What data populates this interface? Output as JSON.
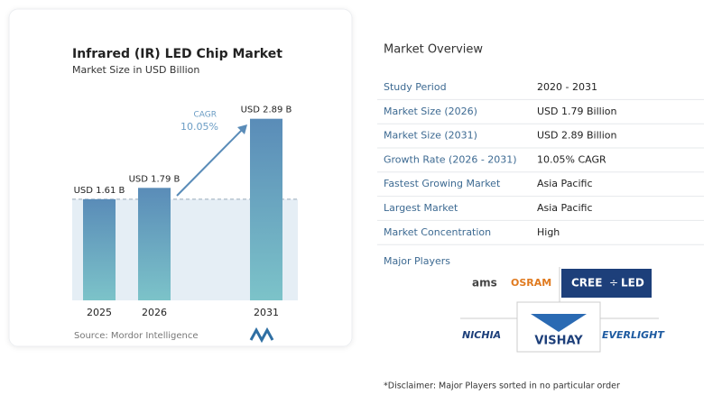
{
  "chart_data": {
    "type": "bar",
    "title": "Infrared (IR) LED Chip Market",
    "subtitle": "Market Size in USD Billion",
    "categories": [
      "2025",
      "2026",
      "2031"
    ],
    "values": [
      1.61,
      1.79,
      2.89
    ],
    "value_labels": [
      "USD 1.61 B",
      "USD 1.79 B",
      "USD 2.89 B"
    ],
    "ylim": [
      0,
      3
    ],
    "cagr_label": "CAGR",
    "cagr_value": "10.05%",
    "source": "Source:  Mordor Intelligence"
  },
  "overview": {
    "title": "Market Overview",
    "rows": [
      [
        "Study Period",
        "2020 - 2031"
      ],
      [
        "Market Size (2026)",
        "USD 1.79 Billion"
      ],
      [
        "Market Size (2031)",
        "USD 2.89 Billion"
      ],
      [
        "Growth Rate (2026 - 2031)",
        "10.05% CAGR"
      ],
      [
        "Fastest Growing Market",
        "Asia Pacific"
      ],
      [
        "Largest Market",
        "Asia Pacific"
      ],
      [
        "Market Concentration",
        "High"
      ]
    ]
  },
  "players": {
    "title": "Major Players",
    "logos": [
      "ams",
      "OSRAM",
      "CREE",
      "LED",
      "NICHIA",
      "VISHAY",
      "EVERLIGHT"
    ]
  },
  "disclaimer": "*Disclaimer: Major Players sorted in no particular order"
}
